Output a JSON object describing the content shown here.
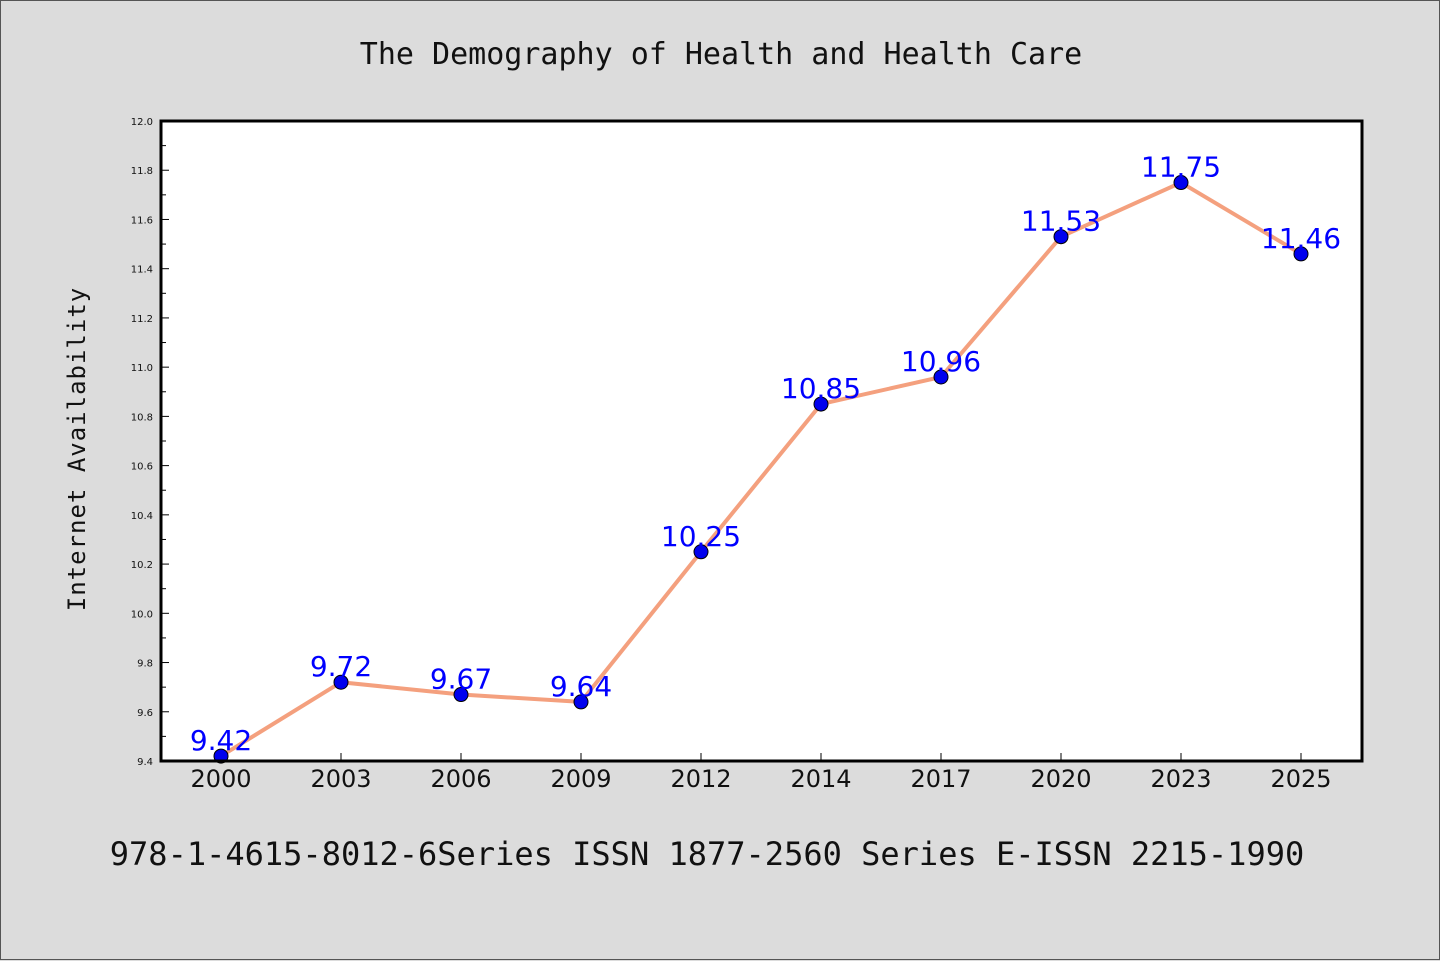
{
  "chart_data": {
    "type": "line",
    "title": "The Demography of Health and Health Care",
    "xlabel": "",
    "ylabel": "Internet Availability",
    "categories": [
      "2000",
      "2003",
      "2006",
      "2009",
      "2012",
      "2014",
      "2017",
      "2020",
      "2023",
      "2025"
    ],
    "series": [
      {
        "values": [
          9.42,
          9.72,
          9.67,
          9.64,
          10.25,
          10.85,
          10.96,
          11.53,
          11.75,
          11.46
        ],
        "data_labels": [
          "9.42",
          "9.72",
          "9.67",
          "9.64",
          "10.25",
          "10.85",
          "10.96",
          "11.53",
          "11.75",
          "11.46"
        ],
        "line_color": "#f4a07e",
        "marker_color": "#0000ee",
        "label_color": "#0000ff"
      }
    ],
    "ylim": [
      9.4,
      12.0
    ],
    "yticks": [
      "9.4",
      "9.6",
      "9.8",
      "10.0",
      "10.2",
      "10.4",
      "10.6",
      "10.8",
      "11.0",
      "11.2",
      "11.4",
      "11.6",
      "11.8",
      "12.0"
    ],
    "grid": false,
    "legend": "none"
  },
  "footer": "978-1-4615-8012-6Series ISSN 1877-2560 Series E-ISSN 2215-1990",
  "colors": {
    "background": "#dcdcdc",
    "plot_background": "#ffffff"
  }
}
